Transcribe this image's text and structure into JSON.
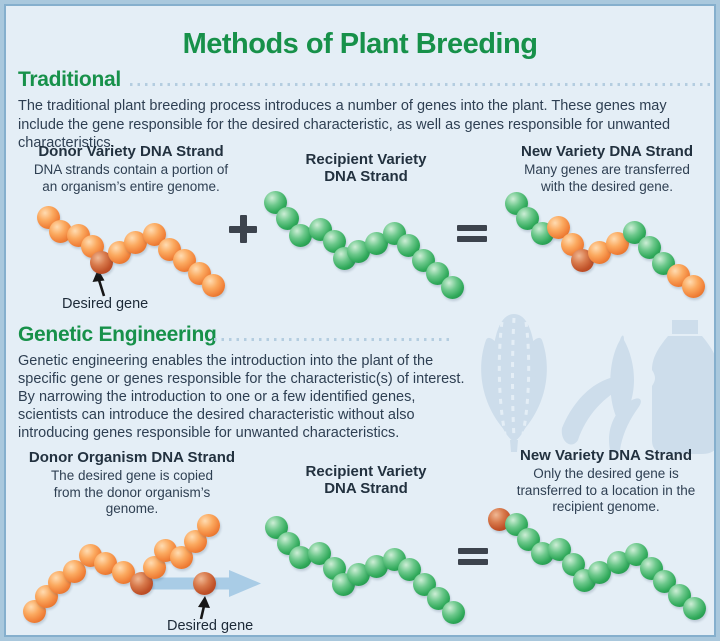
{
  "title": "Methods of Plant Breeding",
  "colors": {
    "accent_green": "#17914a",
    "body_text": "#2e3f52",
    "panel_bg": "#e4eef6",
    "frame_border": "#85afcd",
    "bead_orange": "#f1823a",
    "bead_green": "#31aa5b",
    "bead_desired_red": "#c05229",
    "transfer_arrow_blue": "#a9cce6",
    "operator_dark": "#3c434d"
  },
  "sections": {
    "traditional": {
      "heading": "Traditional",
      "body": "The traditional plant breeding process introduces a number of genes into the plant. These genes may include the gene responsible for the desired characteristic, as well as genes responsible for unwanted characteristics."
    },
    "genetic": {
      "heading": "Genetic Engineering",
      "body": "Genetic engineering enables the introduction into the plant of the specific gene or genes responsible for the characteristic(s) of interest. By narrowing the introduction to one or a few identified genes, scientists can introduce the desired characteristic without also introducing genes responsible for unwanted characteristics."
    }
  },
  "row1": {
    "donor_title": "Donor Variety DNA Strand",
    "donor_desc": "DNA strands contain a portion of an organism’s entire genome.",
    "recipient_title": "Recipient Variety\nDNA Strand",
    "new_title": "New Variety DNA Strand",
    "new_desc": "Many genes are transferred with the desired gene.",
    "plus": "+",
    "equals": "=",
    "desired_gene_label": "Desired gene"
  },
  "row2": {
    "donor_title": "Donor Organism DNA Strand",
    "donor_desc": "The desired gene is copied from the donor organism’s genome.",
    "recipient_title": "Recipient Variety\nDNA Strand",
    "new_title": "New Variety DNA Strand",
    "new_desc": "Only the desired gene is transferred to a location in the recipient genome.",
    "equals": "=",
    "desired_gene_label": "Desired gene"
  },
  "icons": [
    "corn-icon",
    "pea-pods-icon",
    "bottle-icon"
  ],
  "strands": {
    "donor_variety": [
      [
        42,
        211,
        "o"
      ],
      [
        54,
        225,
        "o"
      ],
      [
        72,
        229,
        "o"
      ],
      [
        86,
        240,
        "o"
      ],
      [
        95,
        256,
        "r"
      ],
      [
        113,
        246,
        "o"
      ],
      [
        129,
        236,
        "o"
      ],
      [
        148,
        228,
        "o"
      ],
      [
        163,
        243,
        "o"
      ],
      [
        178,
        254,
        "o"
      ],
      [
        193,
        267,
        "o"
      ],
      [
        207,
        279,
        "o"
      ]
    ],
    "recipient_variety_1": [
      [
        269,
        196,
        "g"
      ],
      [
        281,
        212,
        "g"
      ],
      [
        294,
        229,
        "g"
      ],
      [
        314,
        223,
        "g"
      ],
      [
        328,
        235,
        "g"
      ],
      [
        338,
        252,
        "g"
      ],
      [
        352,
        245,
        "g"
      ],
      [
        370,
        237,
        "g"
      ],
      [
        388,
        227,
        "g"
      ],
      [
        402,
        239,
        "g"
      ],
      [
        417,
        254,
        "g"
      ],
      [
        431,
        267,
        "g"
      ],
      [
        446,
        281,
        "g"
      ]
    ],
    "new_variety_1": [
      [
        510,
        197,
        "g"
      ],
      [
        521,
        212,
        "g"
      ],
      [
        536,
        227,
        "g"
      ],
      [
        552,
        221,
        "o"
      ],
      [
        566,
        238,
        "o"
      ],
      [
        576,
        254,
        "r"
      ],
      [
        593,
        246,
        "o"
      ],
      [
        611,
        237,
        "o"
      ],
      [
        628,
        226,
        "g"
      ],
      [
        643,
        241,
        "g"
      ],
      [
        657,
        257,
        "g"
      ],
      [
        672,
        269,
        "o"
      ],
      [
        687,
        280,
        "o"
      ]
    ],
    "donor_organism": [
      [
        28,
        605,
        "o"
      ],
      [
        40,
        590,
        "o"
      ],
      [
        53,
        576,
        "o"
      ],
      [
        68,
        565,
        "o"
      ],
      [
        84,
        549,
        "o"
      ],
      [
        99,
        557,
        "o"
      ],
      [
        117,
        566,
        "o"
      ],
      [
        135,
        577,
        "r"
      ],
      [
        148,
        561,
        "o"
      ],
      [
        159,
        544,
        "o"
      ],
      [
        175,
        551,
        "o"
      ],
      [
        189,
        535,
        "o"
      ],
      [
        202,
        519,
        "o"
      ]
    ],
    "copied_gene": [
      [
        198,
        577,
        "r"
      ]
    ],
    "recipient_variety_2": [
      [
        270,
        521,
        "g"
      ],
      [
        282,
        537,
        "g"
      ],
      [
        294,
        551,
        "g"
      ],
      [
        313,
        547,
        "g"
      ],
      [
        328,
        562,
        "g"
      ],
      [
        337,
        578,
        "g"
      ],
      [
        352,
        568,
        "g"
      ],
      [
        370,
        560,
        "g"
      ],
      [
        388,
        553,
        "g"
      ],
      [
        403,
        563,
        "g"
      ],
      [
        418,
        578,
        "g"
      ],
      [
        432,
        592,
        "g"
      ],
      [
        447,
        606,
        "g"
      ]
    ],
    "new_variety_2": [
      [
        493,
        513,
        "r"
      ],
      [
        510,
        518,
        "g"
      ],
      [
        522,
        533,
        "g"
      ],
      [
        536,
        547,
        "g"
      ],
      [
        553,
        543,
        "g"
      ],
      [
        567,
        558,
        "g"
      ],
      [
        578,
        574,
        "g"
      ],
      [
        593,
        566,
        "g"
      ],
      [
        612,
        556,
        "g"
      ],
      [
        630,
        548,
        "g"
      ],
      [
        645,
        562,
        "g"
      ],
      [
        658,
        575,
        "g"
      ],
      [
        673,
        589,
        "g"
      ],
      [
        688,
        602,
        "g"
      ]
    ]
  }
}
